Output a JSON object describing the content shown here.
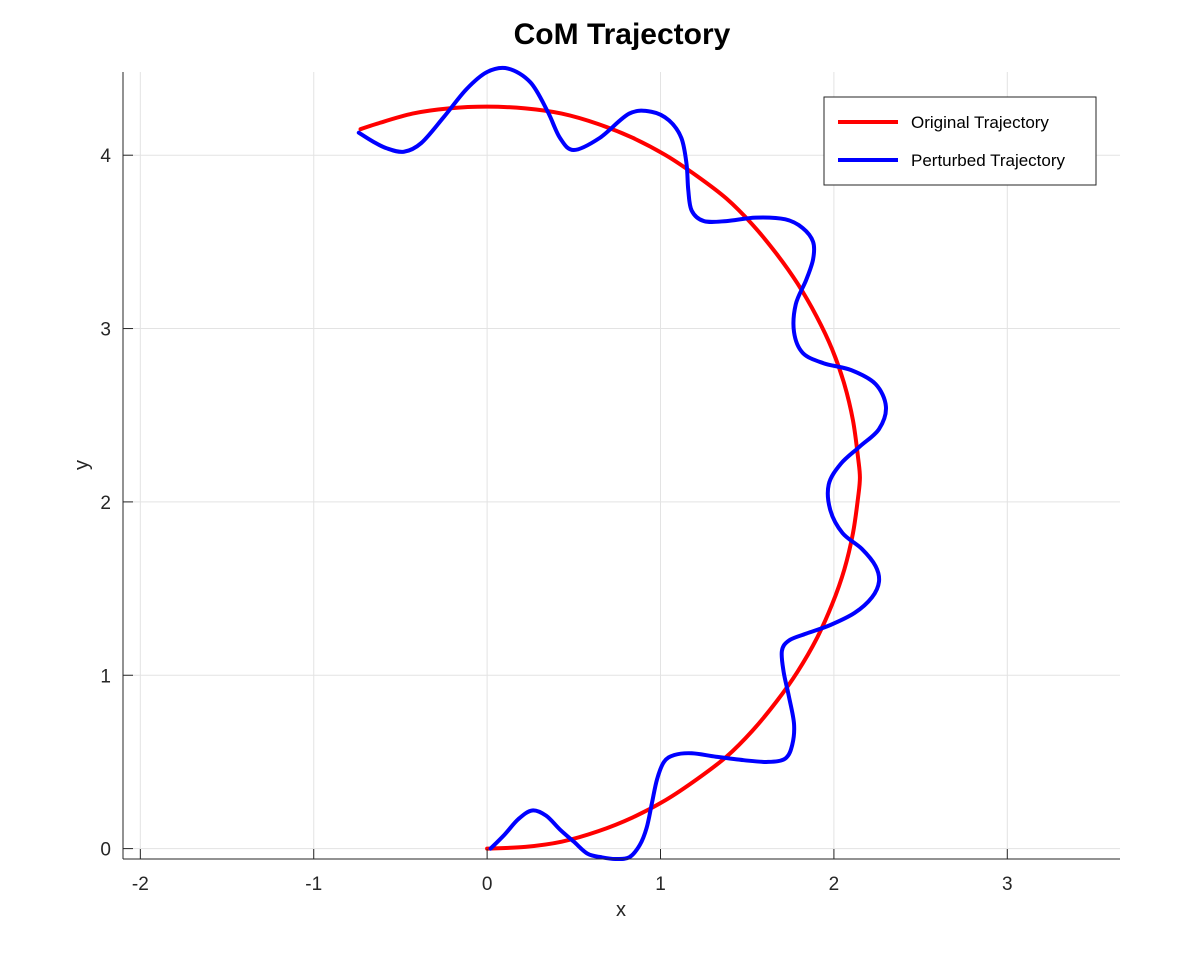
{
  "chart_data": {
    "type": "line",
    "title": "CoM Trajectory",
    "xlabel": "x",
    "ylabel": "y",
    "xlim": [
      -2.1,
      3.65
    ],
    "ylim": [
      -0.06,
      4.48
    ],
    "xticks": [
      -2,
      -1,
      0,
      1,
      2,
      3
    ],
    "yticks": [
      0,
      1,
      2,
      3,
      4
    ],
    "xtick_labels": [
      "-2",
      "-1",
      "0",
      "1",
      "2",
      "3"
    ],
    "ytick_labels": [
      "0",
      "1",
      "2",
      "3",
      "4"
    ],
    "grid": true,
    "legend_position": "top-right",
    "series": [
      {
        "name": "Original Trajectory",
        "color": "#ff0000",
        "x": [
          0.0,
          0.22,
          0.43,
          0.64,
          0.84,
          1.03,
          1.21,
          1.38,
          1.53,
          1.67,
          1.79,
          1.9,
          1.99,
          2.06,
          2.11,
          2.14,
          2.15,
          2.14,
          2.11,
          2.06,
          1.99,
          1.9,
          1.79,
          1.67,
          1.53,
          1.38,
          1.21,
          1.03,
          0.84,
          0.64,
          0.43,
          0.22,
          0.0,
          -0.22,
          -0.43,
          -0.64,
          -0.73
        ],
        "y": [
          0.0,
          0.01,
          0.04,
          0.1,
          0.18,
          0.28,
          0.4,
          0.53,
          0.68,
          0.85,
          1.02,
          1.21,
          1.41,
          1.61,
          1.82,
          2.03,
          2.14,
          2.25,
          2.47,
          2.68,
          2.88,
          3.07,
          3.26,
          3.43,
          3.6,
          3.75,
          3.88,
          4.0,
          4.1,
          4.18,
          4.24,
          4.27,
          4.28,
          4.27,
          4.24,
          4.18,
          4.15
        ]
      },
      {
        "name": "Perturbed Trajectory",
        "color": "#0000ff",
        "x": [
          0.02,
          0.1,
          0.18,
          0.26,
          0.34,
          0.42,
          0.5,
          0.58,
          0.66,
          0.74,
          0.82,
          0.88,
          0.92,
          0.95,
          0.98,
          1.02,
          1.08,
          1.18,
          1.32,
          1.48,
          1.62,
          1.72,
          1.76,
          1.77,
          1.74,
          1.71,
          1.7,
          1.74,
          1.84,
          1.98,
          2.12,
          2.22,
          2.26,
          2.24,
          2.16,
          2.05,
          1.98,
          1.97,
          2.04,
          2.15,
          2.26,
          2.3,
          2.24,
          2.1,
          1.94,
          1.82,
          1.77,
          1.78,
          1.84,
          1.88,
          1.88,
          1.82,
          1.72,
          1.55,
          1.38,
          1.25,
          1.18,
          1.16,
          1.15,
          1.12,
          1.05,
          0.95,
          0.82,
          0.65,
          0.5,
          0.42,
          0.35,
          0.25,
          0.12,
          0.0,
          -0.12,
          -0.25,
          -0.38,
          -0.48,
          -0.58,
          -0.66,
          -0.74
        ],
        "y": [
          0.0,
          0.08,
          0.17,
          0.22,
          0.19,
          0.11,
          0.04,
          -0.03,
          -0.05,
          -0.06,
          -0.05,
          0.02,
          0.12,
          0.26,
          0.4,
          0.5,
          0.54,
          0.55,
          0.53,
          0.51,
          0.5,
          0.52,
          0.6,
          0.72,
          0.88,
          1.02,
          1.14,
          1.2,
          1.24,
          1.29,
          1.36,
          1.45,
          1.54,
          1.63,
          1.73,
          1.82,
          1.95,
          2.1,
          2.22,
          2.32,
          2.42,
          2.55,
          2.68,
          2.76,
          2.8,
          2.86,
          2.98,
          3.14,
          3.28,
          3.4,
          3.5,
          3.58,
          3.63,
          3.64,
          3.62,
          3.62,
          3.68,
          3.8,
          3.95,
          4.1,
          4.2,
          4.25,
          4.24,
          4.1,
          4.03,
          4.1,
          4.25,
          4.42,
          4.5,
          4.48,
          4.38,
          4.22,
          4.07,
          4.02,
          4.04,
          4.08,
          4.13
        ]
      }
    ]
  }
}
